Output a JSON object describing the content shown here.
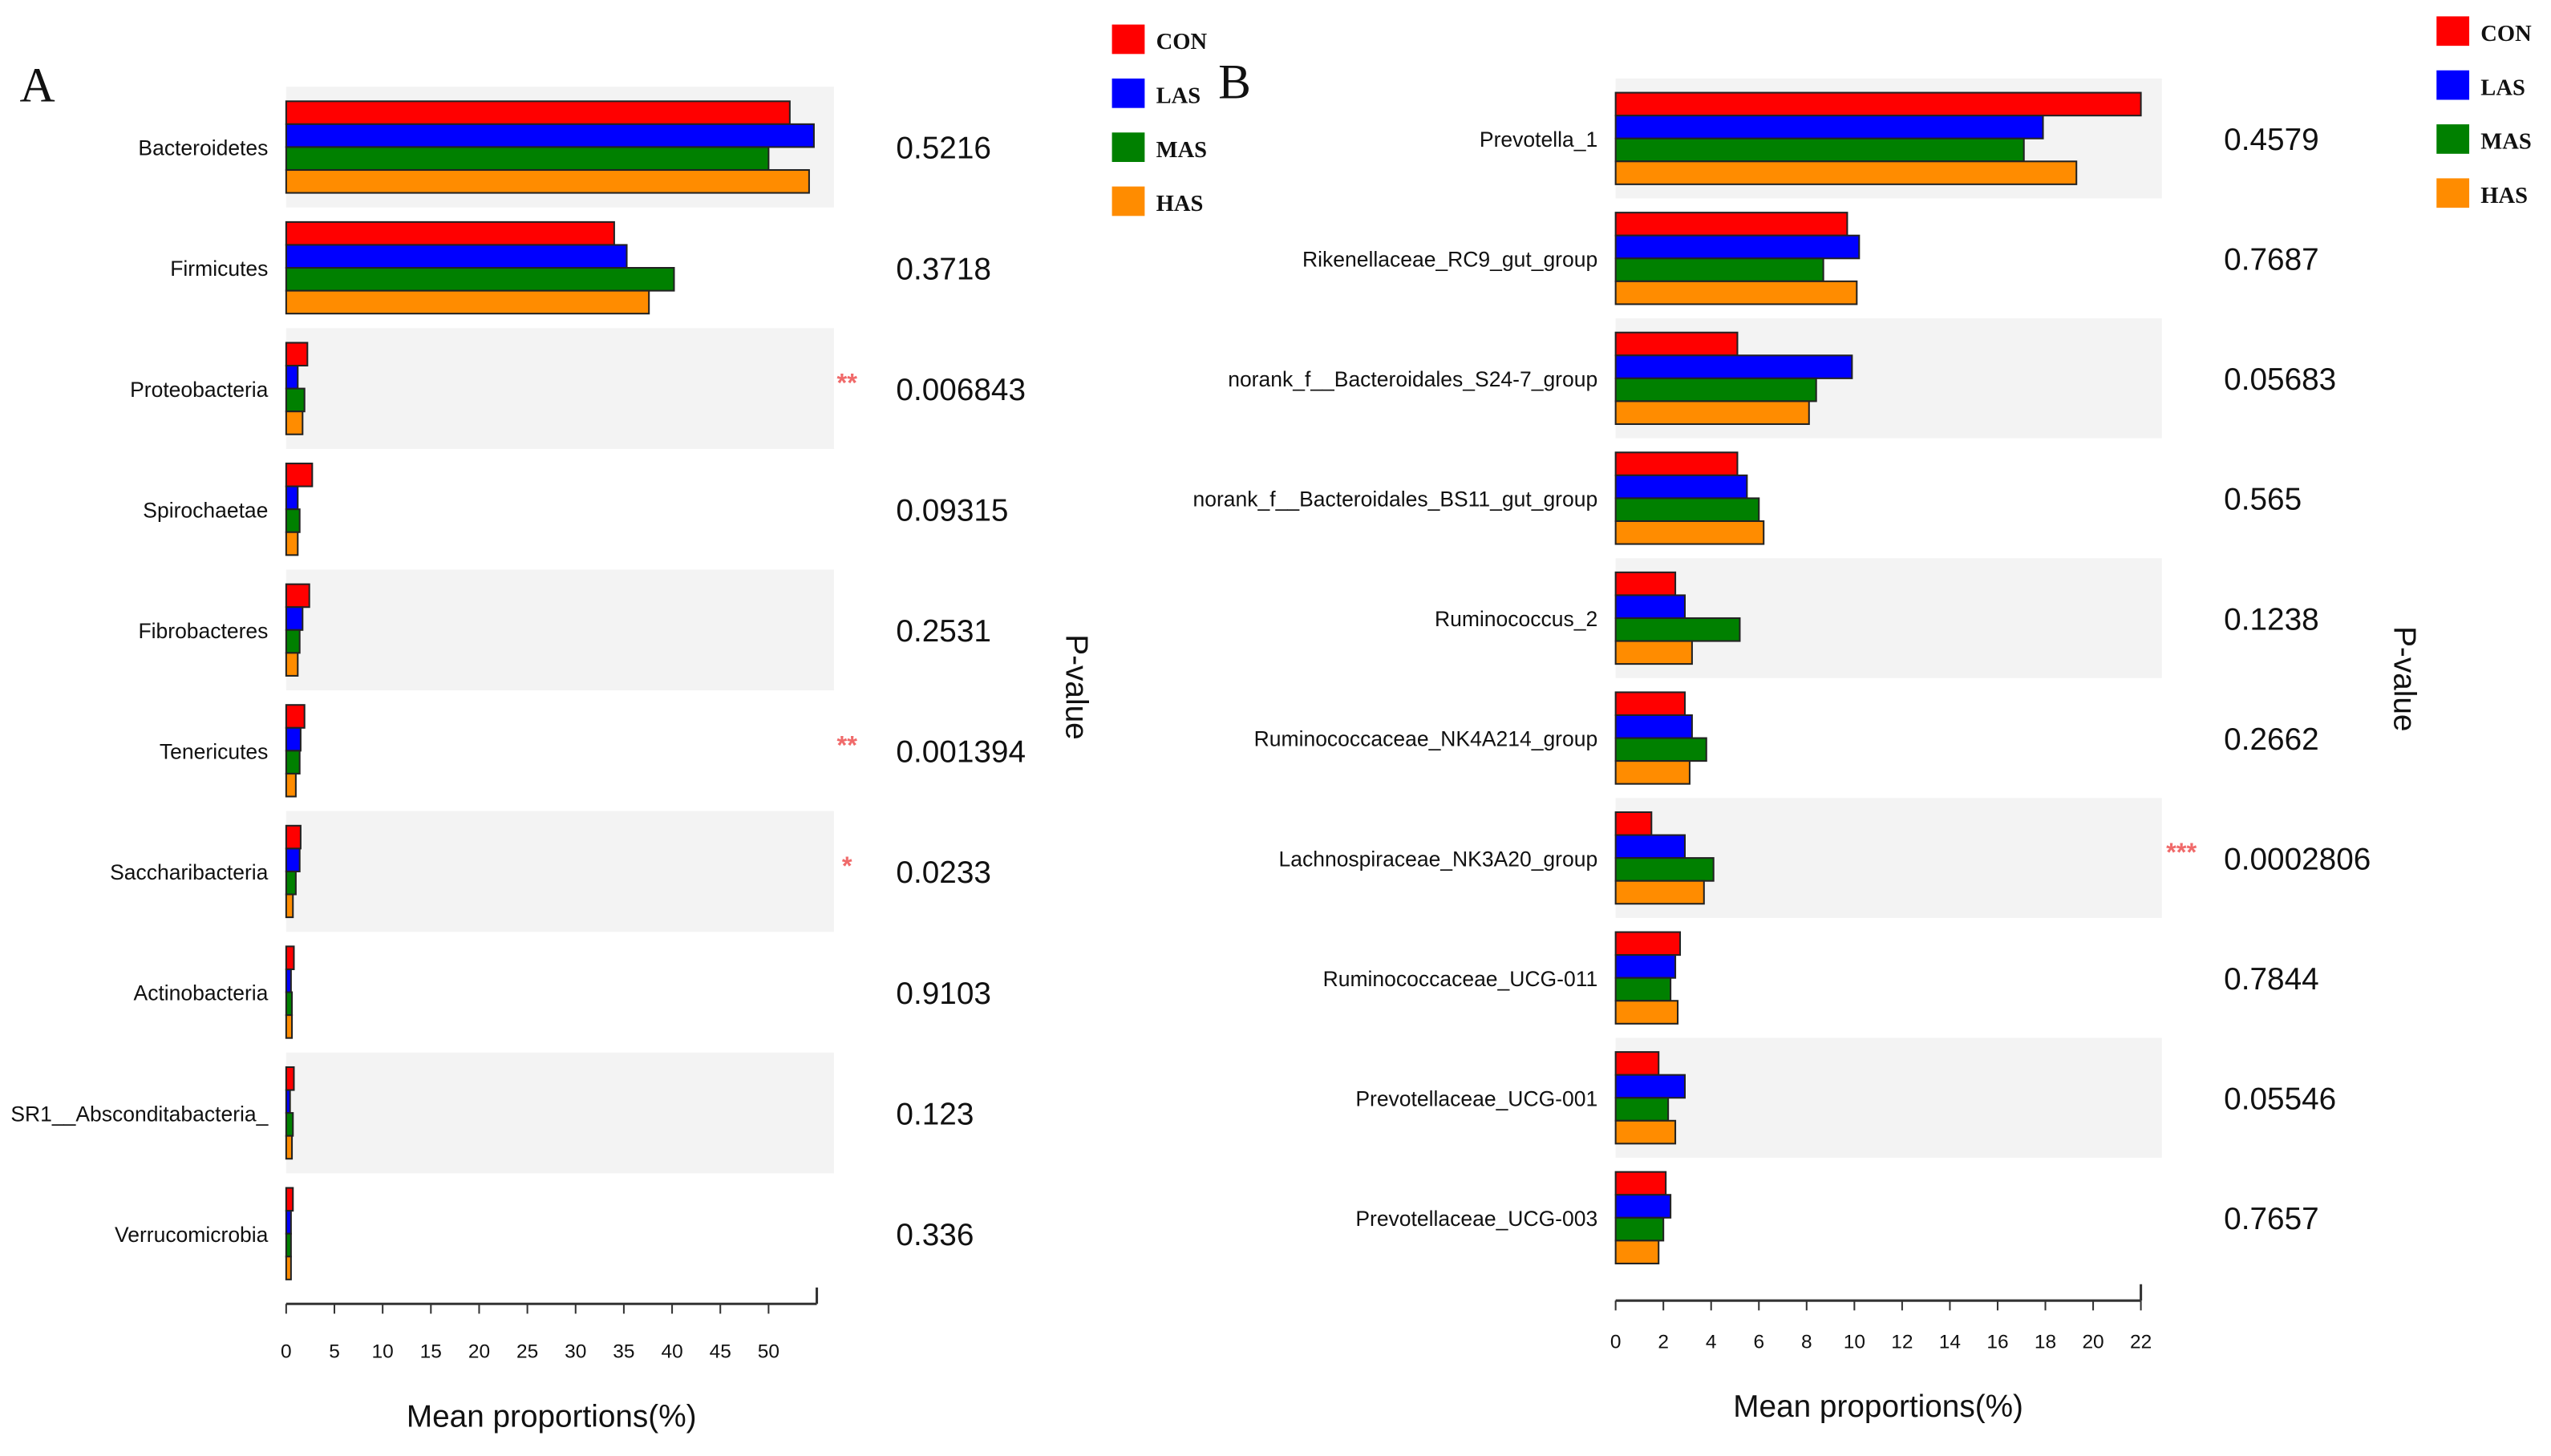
{
  "chart_data": [
    {
      "type": "bar",
      "orientation": "horizontal",
      "panel_label": "A",
      "categories": [
        "Bacteroidetes",
        "Firmicutes",
        "Proteobacteria",
        "Spirochaetae",
        "Fibrobacteres",
        "Tenericutes",
        "Saccharibacteria",
        "Actinobacteria",
        "SR1__Absconditabacteria_",
        "Verrucomicrobia"
      ],
      "series": [
        {
          "name": "CON",
          "color": "#ff0000",
          "values": [
            52.2,
            34.0,
            2.2,
            2.7,
            2.4,
            1.9,
            1.5,
            0.8,
            0.8,
            0.7
          ]
        },
        {
          "name": "LAS",
          "color": "#0000ff",
          "values": [
            54.7,
            35.3,
            1.2,
            1.2,
            1.7,
            1.5,
            1.4,
            0.5,
            0.4,
            0.5
          ]
        },
        {
          "name": "MAS",
          "color": "#008000",
          "values": [
            50.0,
            40.2,
            1.9,
            1.4,
            1.4,
            1.4,
            1.0,
            0.6,
            0.7,
            0.5
          ]
        },
        {
          "name": "HAS",
          "color": "#ff8c00",
          "values": [
            54.2,
            37.6,
            1.7,
            1.2,
            1.2,
            1.0,
            0.7,
            0.6,
            0.6,
            0.5
          ]
        }
      ],
      "p_values": [
        "0.5216",
        "0.3718",
        "0.006843",
        "0.09315",
        "0.2531",
        "0.001394",
        "0.0233",
        "0.9103",
        "0.123",
        "0.336"
      ],
      "significance": [
        "",
        "",
        "**",
        "",
        "",
        "**",
        "*",
        "",
        "",
        ""
      ],
      "xlabel": "Mean proportions(%)",
      "p_label": "P-value",
      "xticks": [
        0,
        5,
        10,
        15,
        20,
        25,
        30,
        35,
        40,
        45,
        50
      ],
      "xlim": [
        0,
        55
      ],
      "legend_position": "top-right"
    },
    {
      "type": "bar",
      "orientation": "horizontal",
      "panel_label": "B",
      "categories": [
        "Prevotella_1",
        "Rikenellaceae_RC9_gut_group",
        "norank_f__Bacteroidales_S24-7_group",
        "norank_f__Bacteroidales_BS11_gut_group",
        "Ruminococcus_2",
        "Ruminococcaceae_NK4A214_group",
        "Lachnospiraceae_NK3A20_group",
        "Ruminococcaceae_UCG-011",
        "Prevotellaceae_UCG-001",
        "Prevotellaceae_UCG-003"
      ],
      "series": [
        {
          "name": "CON",
          "color": "#ff0000",
          "values": [
            22.0,
            9.7,
            5.1,
            5.1,
            2.5,
            2.9,
            1.5,
            2.7,
            1.8,
            2.1
          ]
        },
        {
          "name": "LAS",
          "color": "#0000ff",
          "values": [
            17.9,
            10.2,
            9.9,
            5.5,
            2.9,
            3.2,
            2.9,
            2.5,
            2.9,
            2.3
          ]
        },
        {
          "name": "MAS",
          "color": "#008000",
          "values": [
            17.1,
            8.7,
            8.4,
            6.0,
            5.2,
            3.8,
            4.1,
            2.3,
            2.2,
            2.0
          ]
        },
        {
          "name": "HAS",
          "color": "#ff8c00",
          "values": [
            19.3,
            10.1,
            8.1,
            6.2,
            3.2,
            3.1,
            3.7,
            2.6,
            2.5,
            1.8
          ]
        }
      ],
      "p_values": [
        "0.4579",
        "0.7687",
        "0.05683",
        "0.565",
        "0.1238",
        "0.2662",
        "0.0002806",
        "0.7844",
        "0.05546",
        "0.7657"
      ],
      "significance": [
        "",
        "",
        "",
        "",
        "",
        "",
        "***",
        "",
        "",
        ""
      ],
      "xlabel": "Mean proportions(%)",
      "p_label": "P-value",
      "xticks": [
        0,
        2,
        4,
        6,
        8,
        10,
        12,
        14,
        16,
        18,
        20,
        22
      ],
      "xlim": [
        0,
        22
      ],
      "legend_position": "top-right"
    }
  ]
}
